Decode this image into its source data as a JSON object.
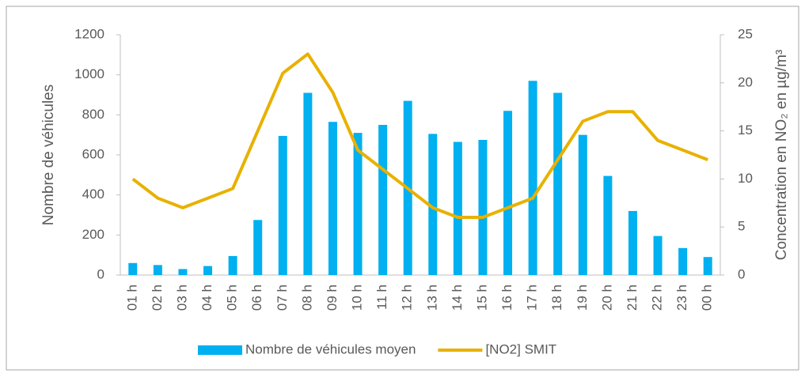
{
  "chart_data": {
    "type": "bar",
    "categories": [
      "01 h",
      "02 h",
      "03 h",
      "04 h",
      "05 h",
      "06 h",
      "07 h",
      "08 h",
      "09 h",
      "10 h",
      "11 h",
      "12 h",
      "13 h",
      "14 h",
      "15 h",
      "16 h",
      "17 h",
      "18 h",
      "19 h",
      "20 h",
      "21 h",
      "22 h",
      "23 h",
      "00 h"
    ],
    "series": [
      {
        "name": "Nombre de véhicules moyen",
        "type": "bar",
        "color": "#00b0f0",
        "values": [
          60,
          50,
          30,
          45,
          95,
          275,
          695,
          910,
          765,
          710,
          750,
          870,
          705,
          665,
          675,
          820,
          970,
          910,
          700,
          495,
          320,
          195,
          135,
          90
        ]
      },
      {
        "name": "[NO2] SMIT",
        "type": "line",
        "axis": "y2",
        "color": "#e8b100",
        "values": [
          10,
          8,
          7,
          8,
          9,
          15,
          21,
          23,
          19,
          13,
          11,
          9,
          7,
          6,
          6,
          7,
          8,
          12,
          16,
          17,
          17,
          14,
          13,
          12
        ]
      }
    ],
    "ylabel": "Nombre de véhicules",
    "y2label": "Concentration en NO₂ en µg/m³",
    "ylim": [
      0,
      1200
    ],
    "yticks": [
      0,
      200,
      400,
      600,
      800,
      1000,
      1200
    ],
    "y2lim": [
      0,
      25
    ],
    "y2ticks": [
      0,
      5,
      10,
      15,
      20,
      25
    ],
    "legend": "bottom",
    "grid": false
  }
}
